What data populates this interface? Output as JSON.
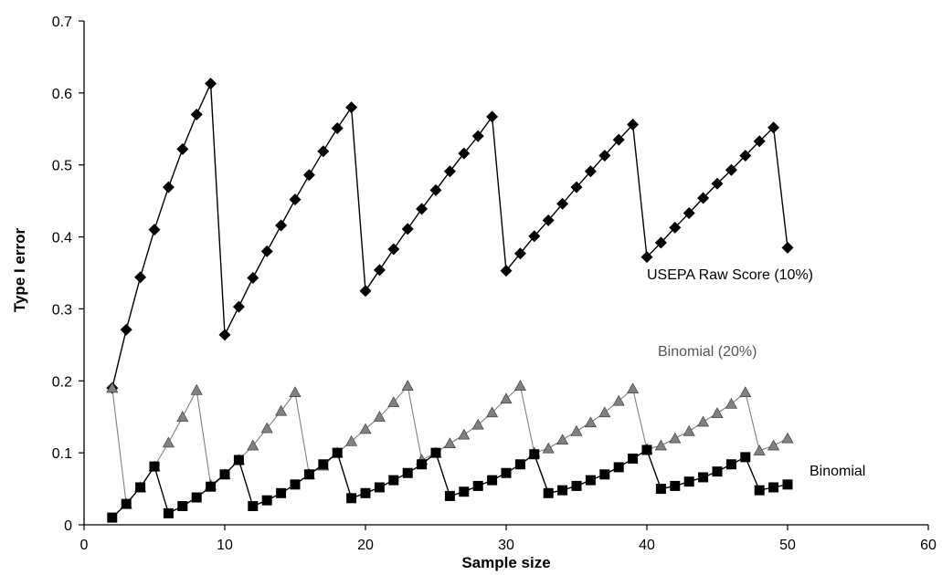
{
  "chart_data": {
    "type": "line",
    "xlabel": "Sample size",
    "ylabel": "Type I error",
    "xlim": [
      0,
      60
    ],
    "ylim": [
      0,
      0.7
    ],
    "x_ticks": [
      "0",
      "10",
      "20",
      "30",
      "40",
      "50",
      "60"
    ],
    "y_ticks": [
      "0",
      "0.1",
      "0.2",
      "0.3",
      "0.4",
      "0.5",
      "0.6",
      "0.7"
    ],
    "grid": false,
    "series": [
      {
        "name": "USEPA Raw Score (10%)",
        "marker": "diamond",
        "color": "#000000",
        "x": [
          2,
          3,
          4,
          5,
          6,
          7,
          8,
          9,
          10,
          11,
          12,
          13,
          14,
          15,
          16,
          17,
          18,
          19,
          20,
          21,
          22,
          23,
          24,
          25,
          26,
          27,
          28,
          29,
          30,
          31,
          32,
          33,
          34,
          35,
          36,
          37,
          38,
          39,
          40,
          41,
          42,
          43,
          44,
          45,
          46,
          47,
          48,
          49,
          50
        ],
        "y": [
          0.19,
          0.271,
          0.344,
          0.41,
          0.469,
          0.522,
          0.57,
          0.613,
          0.264,
          0.303,
          0.343,
          0.38,
          0.416,
          0.452,
          0.486,
          0.519,
          0.551,
          0.58,
          0.325,
          0.354,
          0.383,
          0.411,
          0.439,
          0.465,
          0.491,
          0.516,
          0.54,
          0.567,
          0.353,
          0.377,
          0.401,
          0.423,
          0.446,
          0.469,
          0.491,
          0.513,
          0.535,
          0.556,
          0.372,
          0.392,
          0.413,
          0.433,
          0.454,
          0.474,
          0.493,
          0.513,
          0.533,
          0.552,
          0.385
        ]
      },
      {
        "name": "Binomial (20%)",
        "marker": "triangle",
        "color": "#808080",
        "x": [
          2,
          3,
          4,
          5,
          6,
          7,
          8,
          9,
          10,
          11,
          12,
          13,
          14,
          15,
          16,
          17,
          18,
          19,
          20,
          21,
          22,
          23,
          24,
          25,
          26,
          27,
          28,
          29,
          30,
          31,
          32,
          33,
          34,
          35,
          36,
          37,
          38,
          39,
          40,
          41,
          42,
          43,
          44,
          45,
          46,
          47,
          48,
          49,
          50
        ],
        "y": [
          0.19,
          0.029,
          0.052,
          0.081,
          0.114,
          0.15,
          0.187,
          0.055,
          0.07,
          0.09,
          0.11,
          0.134,
          0.158,
          0.184,
          0.07,
          0.082,
          0.1,
          0.116,
          0.133,
          0.15,
          0.17,
          0.193,
          0.09,
          0.1,
          0.113,
          0.125,
          0.139,
          0.156,
          0.175,
          0.193,
          0.1,
          0.106,
          0.118,
          0.13,
          0.142,
          0.156,
          0.172,
          0.189,
          0.105,
          0.11,
          0.12,
          0.13,
          0.143,
          0.155,
          0.168,
          0.184,
          0.103,
          0.11,
          0.12
        ]
      },
      {
        "name": "Binomial",
        "marker": "square",
        "color": "#000000",
        "x": [
          2,
          3,
          4,
          5,
          6,
          7,
          8,
          9,
          10,
          11,
          12,
          13,
          14,
          15,
          16,
          17,
          18,
          19,
          20,
          21,
          22,
          23,
          24,
          25,
          26,
          27,
          28,
          29,
          30,
          31,
          32,
          33,
          34,
          35,
          36,
          37,
          38,
          39,
          40,
          41,
          42,
          43,
          44,
          45,
          46,
          47,
          48,
          49,
          50
        ],
        "y": [
          0.01,
          0.029,
          0.052,
          0.081,
          0.016,
          0.026,
          0.038,
          0.053,
          0.07,
          0.09,
          0.026,
          0.034,
          0.044,
          0.056,
          0.07,
          0.084,
          0.1,
          0.037,
          0.044,
          0.052,
          0.062,
          0.072,
          0.084,
          0.1,
          0.04,
          0.046,
          0.054,
          0.062,
          0.072,
          0.084,
          0.098,
          0.044,
          0.048,
          0.054,
          0.062,
          0.07,
          0.08,
          0.092,
          0.104,
          0.05,
          0.054,
          0.06,
          0.066,
          0.074,
          0.084,
          0.094,
          0.048,
          0.052,
          0.056
        ]
      }
    ]
  }
}
